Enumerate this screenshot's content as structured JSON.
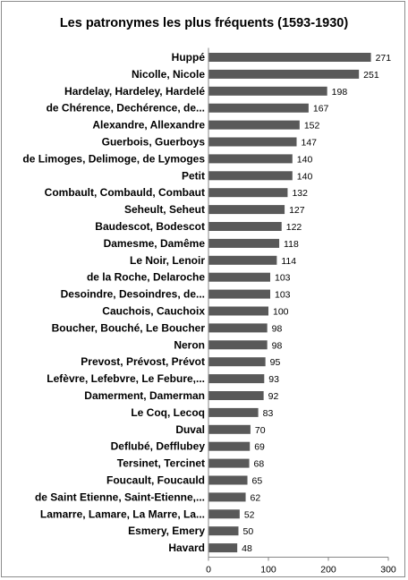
{
  "chart_data": {
    "type": "bar",
    "orientation": "horizontal",
    "title": "Les patronymes les plus fréquents (1593-1930)",
    "xlabel": "",
    "ylabel": "",
    "xlim": [
      0,
      300
    ],
    "x_ticks": [
      0,
      100,
      200,
      300
    ],
    "grid": false,
    "legend": "none",
    "bar_color": "#595959",
    "categories": [
      "Huppé",
      "Nicolle, Nicole",
      "Hardelay, Hardeley, Hardelé",
      "de Chérence, Dechérence, de...",
      "Alexandre, Allexandre",
      "Guerbois, Guerboys",
      "de Limoges, Delimoge, de Lymoges",
      "Petit",
      "Combault, Combauld, Combaut",
      "Seheult, Seheut",
      "Baudescot, Bodescot",
      "Damesme, Damême",
      "Le Noir, Lenoir",
      "de la Roche, Delaroche",
      "Desoindre, Desoindres, de...",
      "Cauchois, Cauchoix",
      "Boucher, Bouché, Le Boucher",
      "Neron",
      "Prevost, Prévost, Prévot",
      "Lefèvre, Lefebvre, Le Febure,...",
      "Damerment, Damerman",
      "Le Coq, Lecoq",
      "Duval",
      "Deflubé, Defflubey",
      "Tersinet, Tercinet",
      "Foucault, Foucauld",
      "de Saint Etienne, Saint-Etienne,...",
      "Lamarre, Lamare, La Marre, La...",
      "Esmery, Emery",
      "Havard"
    ],
    "values": [
      271,
      251,
      198,
      167,
      152,
      147,
      140,
      140,
      132,
      127,
      122,
      118,
      114,
      103,
      103,
      100,
      98,
      98,
      95,
      93,
      92,
      83,
      70,
      69,
      68,
      65,
      62,
      52,
      50,
      48
    ]
  }
}
